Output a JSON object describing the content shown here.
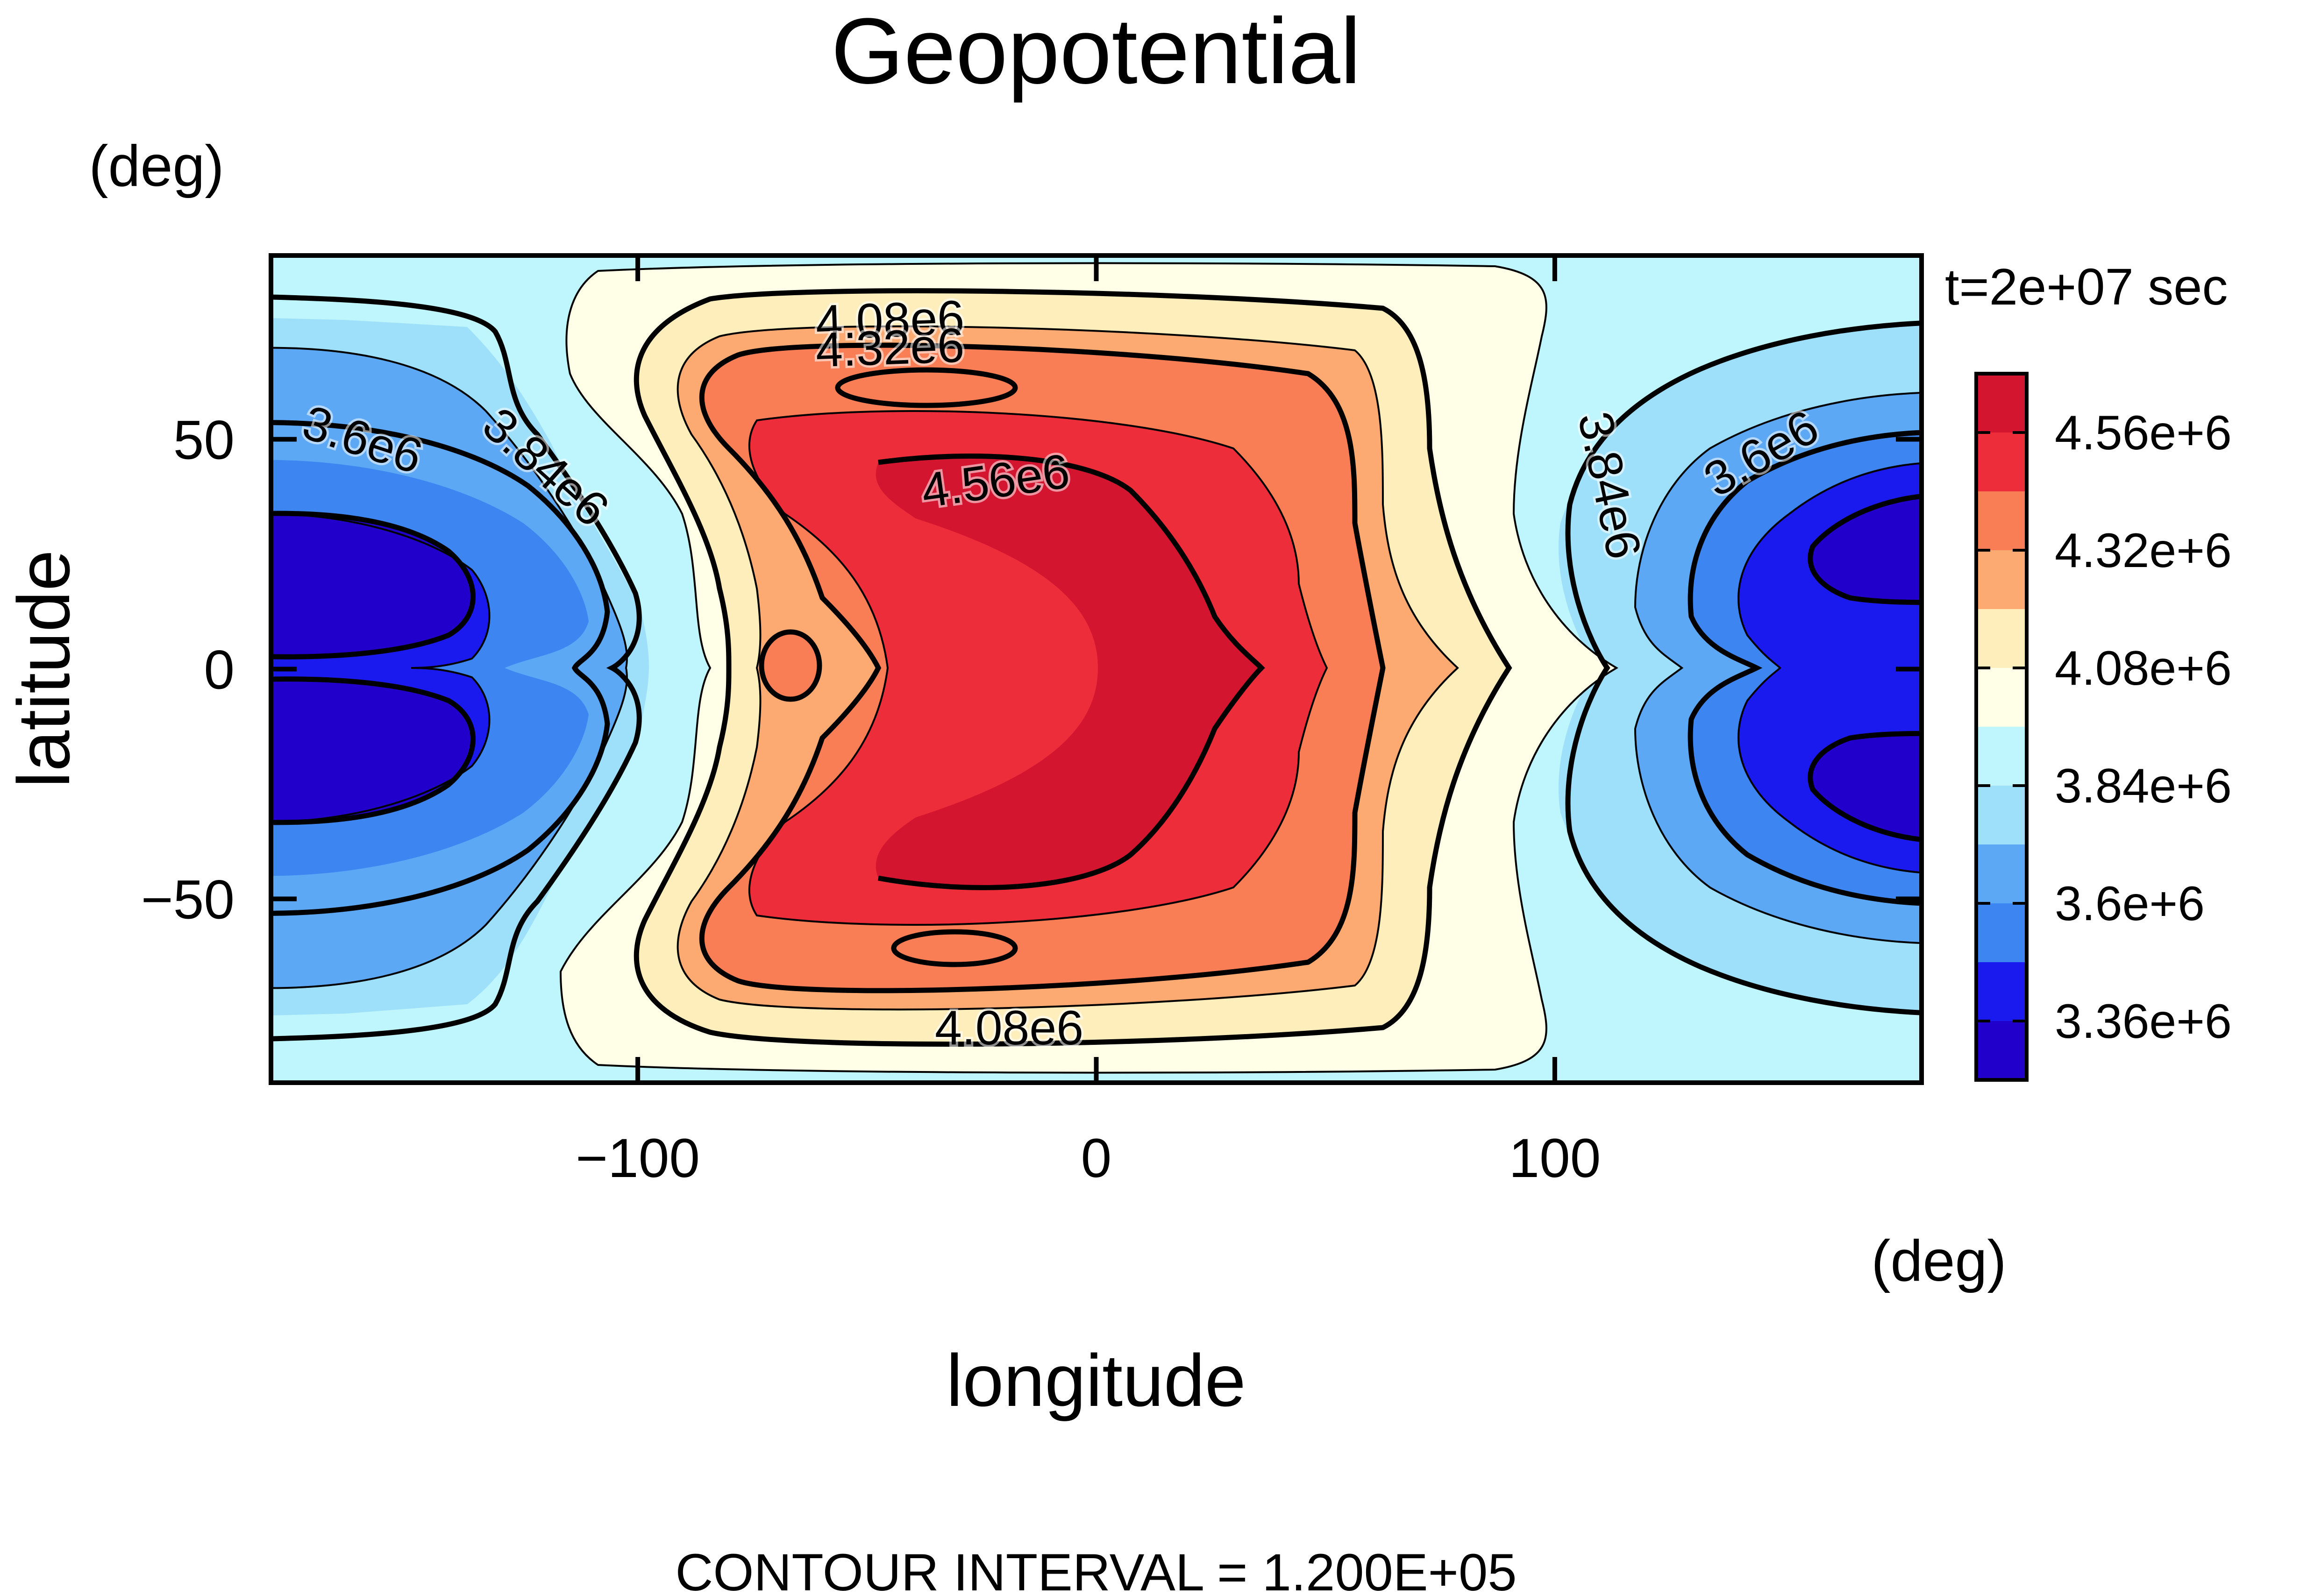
{
  "chart_data": {
    "type": "heatmap",
    "title": "Geopotential",
    "xlabel": "longitude",
    "ylabel": "latitude",
    "x_unit": "(deg)",
    "y_unit": "(deg)",
    "xlim": [
      -180,
      180
    ],
    "ylim": [
      -90,
      90
    ],
    "x_ticks": [
      -100,
      0,
      100
    ],
    "x_tick_labels": [
      "−100",
      "0",
      "100"
    ],
    "y_ticks": [
      -50,
      0,
      50
    ],
    "y_tick_labels": [
      "−50",
      "0",
      "50"
    ],
    "time_label": "t=2e+07 sec",
    "footer": "CONTOUR INTERVAL = 1.200E+05",
    "colorbar": {
      "tick_labels": [
        "4.56e+6",
        "4.32e+6",
        "4.08e+6",
        "3.84e+6",
        "3.6e+6",
        "3.36e+6"
      ],
      "levels": [
        3360000,
        3480000,
        3600000,
        3720000,
        3840000,
        3960000,
        4080000,
        4200000,
        4320000,
        4440000,
        4560000
      ],
      "colors": [
        "#2200cc",
        "#1a1aee",
        "#3d85f0",
        "#5ca8f5",
        "#9ee0fa",
        "#bff5fc",
        "#fffee6",
        "#fdeebc",
        "#fcaa72",
        "#fa7e55",
        "#ee2d3a",
        "#d4152f"
      ]
    },
    "contour_labels": [
      {
        "text": "3.6e6",
        "lon": -160,
        "lat": 50
      },
      {
        "text": "3.84e6",
        "lon": -120,
        "lat": 44
      },
      {
        "text": "4.08e6",
        "lon": -45,
        "lat": 76
      },
      {
        "text": "4.32e6",
        "lon": -45,
        "lat": 70
      },
      {
        "text": "4.56e6",
        "lon": -22,
        "lat": 41
      },
      {
        "text": "4.08e6",
        "lon": -19,
        "lat": -78
      },
      {
        "text": "3.84e6",
        "lon": 112,
        "lat": 40
      },
      {
        "text": "3.6e6",
        "lon": 145,
        "lat": 47
      }
    ]
  }
}
